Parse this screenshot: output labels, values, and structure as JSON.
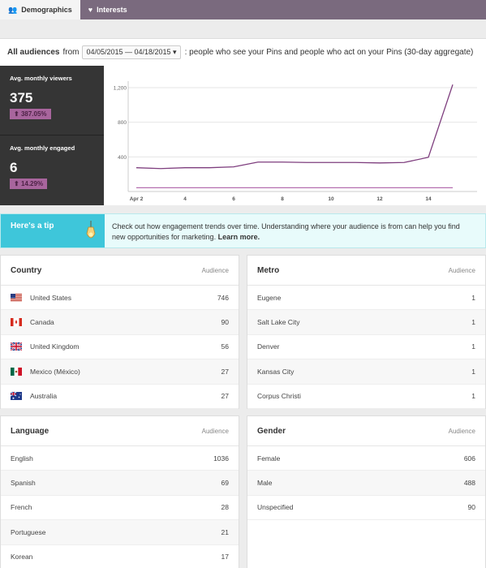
{
  "tabs": [
    {
      "label": "Demographics",
      "icon": "users-icon"
    },
    {
      "label": "Interests",
      "icon": "heart-icon"
    }
  ],
  "header": {
    "title": "All audiences",
    "from": "from",
    "date_range": "04/05/2015 — 04/18/2015 ▾",
    "description": ": people who see your Pins and people who act on your Pins (30-day aggregate)"
  },
  "stats": {
    "viewers_label": "Avg. monthly viewers",
    "viewers_value": "375",
    "viewers_change": "387.05%",
    "engaged_label": "Avg. monthly engaged",
    "engaged_value": "6",
    "engaged_change": "14.29%"
  },
  "chart_data": {
    "type": "line",
    "categories": [
      "Apr 2",
      "",
      "4",
      "",
      "6",
      "",
      "8",
      "",
      "10",
      "",
      "12",
      "",
      "14",
      ""
    ],
    "y_ticks": [
      400,
      800,
      1200
    ],
    "ylim": [
      0,
      1200
    ],
    "series": [
      {
        "values": [
          275,
          265,
          275,
          275,
          285,
          340,
          340,
          335,
          335,
          335,
          330,
          335,
          395,
          1235
        ],
        "color": "#7e3e7e"
      },
      {
        "values": [
          6,
          6,
          6,
          6,
          6,
          6,
          6,
          6,
          6,
          6,
          6,
          6,
          6,
          6
        ],
        "color": "#b56fb0"
      }
    ]
  },
  "tip": {
    "label": "Here's a tip",
    "text": "Check out how engagement trends over time. Understanding where your audience is from can help you find new opportunities for marketing.",
    "link": "Learn more."
  },
  "country": {
    "title": "Country",
    "col": "Audience",
    "rows": [
      {
        "name": "United States",
        "value": "746",
        "flag": "us-flag-icon"
      },
      {
        "name": "Canada",
        "value": "90",
        "flag": "ca-flag-icon"
      },
      {
        "name": "United Kingdom",
        "value": "56",
        "flag": "uk-flag-icon"
      },
      {
        "name": "Mexico (México)",
        "value": "27",
        "flag": "mx-flag-icon"
      },
      {
        "name": "Australia",
        "value": "27",
        "flag": "au-flag-icon"
      }
    ]
  },
  "metro": {
    "title": "Metro",
    "col": "Audience",
    "rows": [
      {
        "name": "Eugene",
        "value": "1"
      },
      {
        "name": "Salt Lake City",
        "value": "1"
      },
      {
        "name": "Denver",
        "value": "1"
      },
      {
        "name": "Kansas City",
        "value": "1"
      },
      {
        "name": "Corpus Christi",
        "value": "1"
      }
    ]
  },
  "language": {
    "title": "Language",
    "col": "Audience",
    "rows": [
      {
        "name": "English",
        "value": "1036"
      },
      {
        "name": "Spanish",
        "value": "69"
      },
      {
        "name": "French",
        "value": "28"
      },
      {
        "name": "Portuguese",
        "value": "21"
      },
      {
        "name": "Korean",
        "value": "17"
      }
    ]
  },
  "gender": {
    "title": "Gender",
    "col": "Audience",
    "rows": [
      {
        "name": "Female",
        "value": "606"
      },
      {
        "name": "Male",
        "value": "488"
      },
      {
        "name": "Unspecified",
        "value": "90"
      }
    ]
  },
  "colors": {
    "accent": "#a8659d",
    "tip": "#3ec6da",
    "tab_bar": "#7a6a7e"
  }
}
